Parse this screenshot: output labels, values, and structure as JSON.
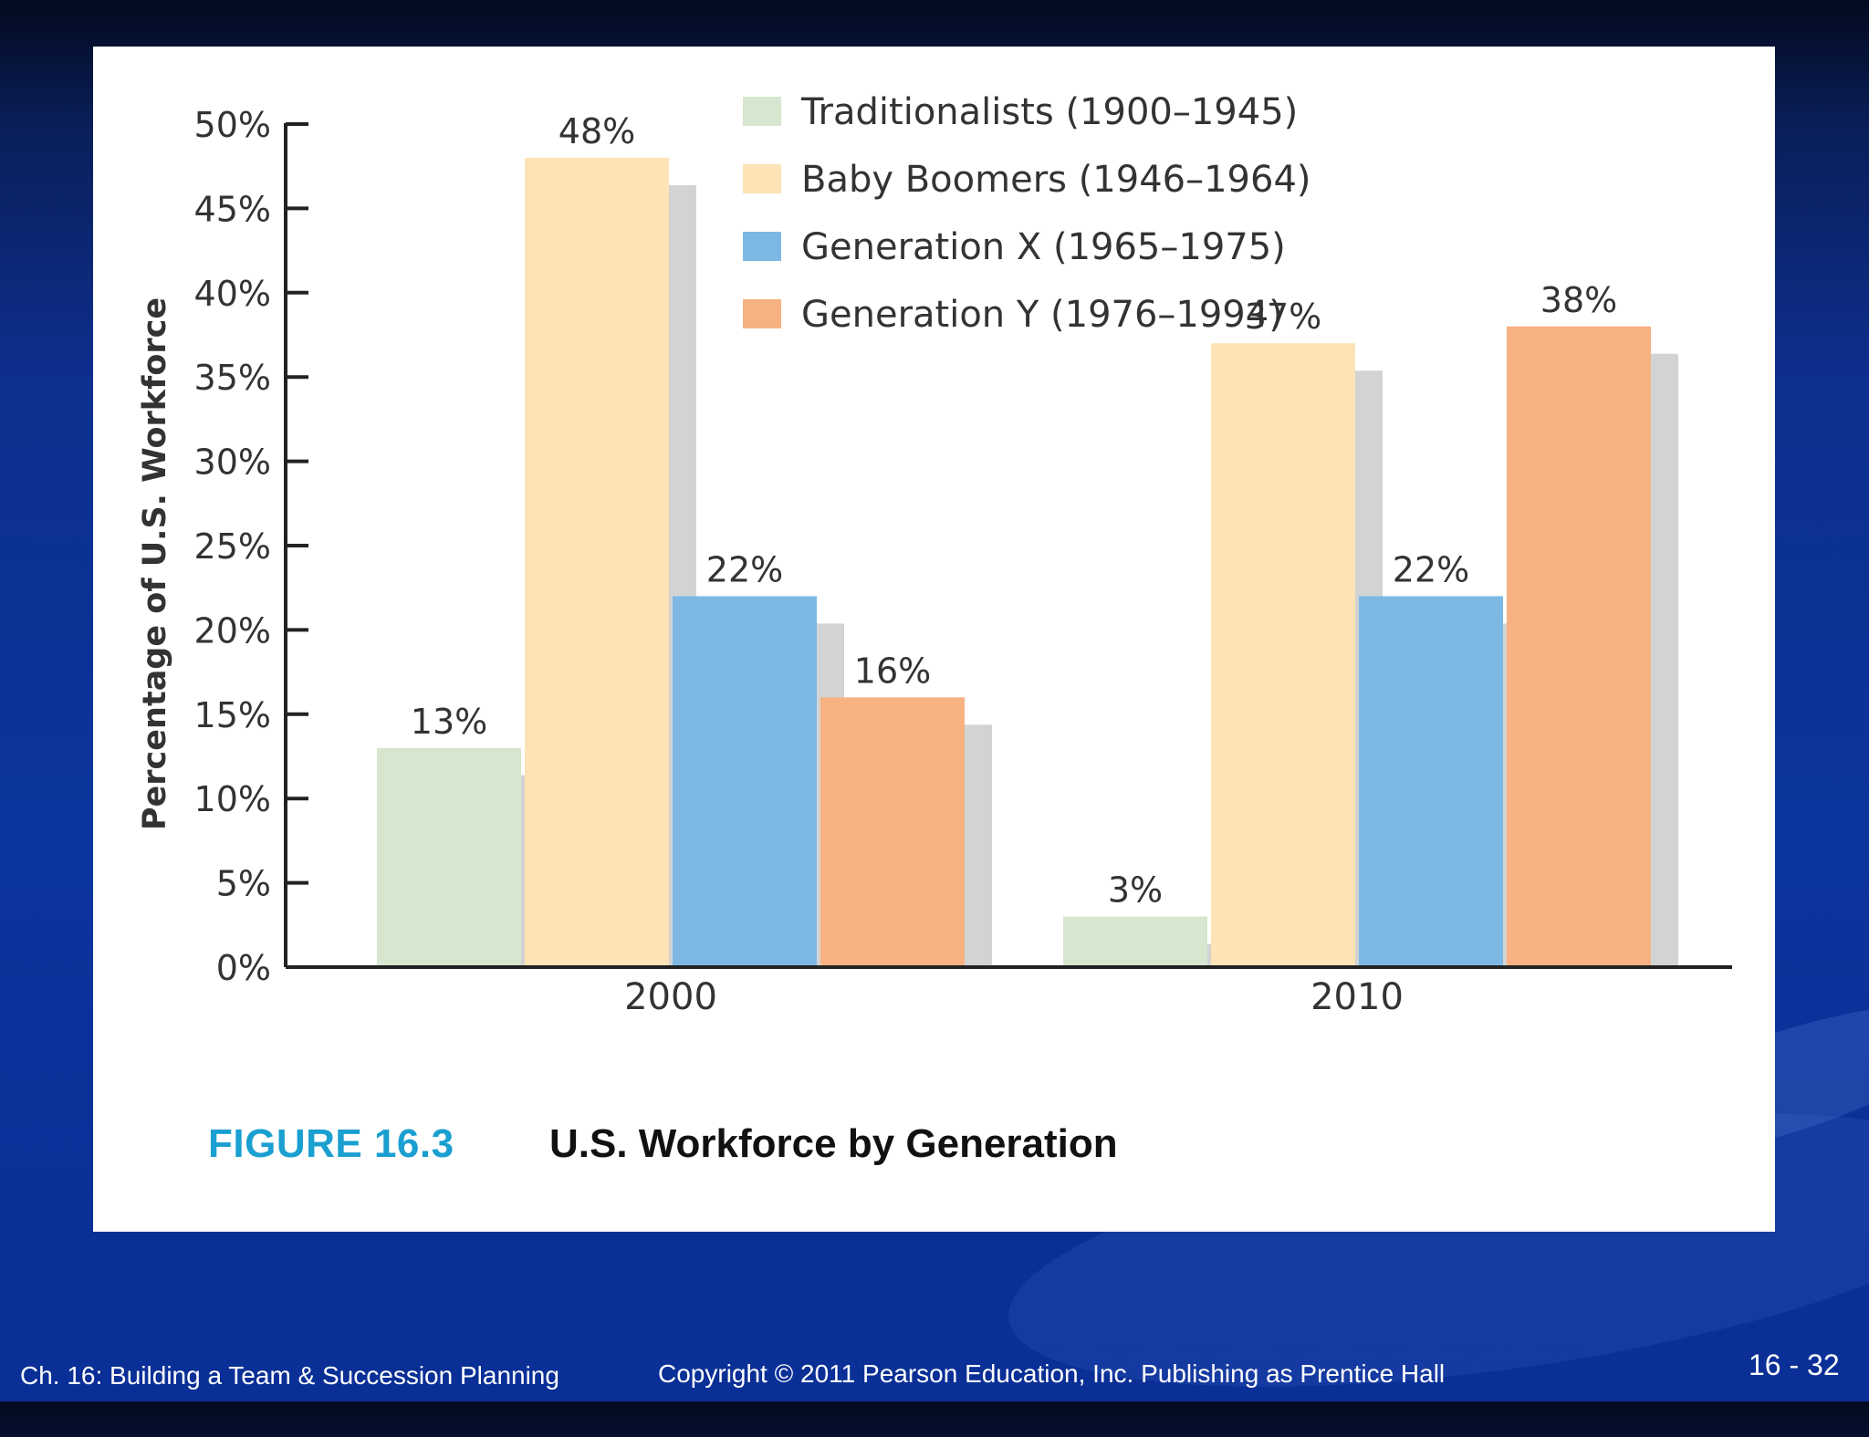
{
  "slide": {
    "figure_number": "FIGURE 16.3",
    "figure_title": "U.S. Workforce by Generation",
    "footer_left": "Ch. 16: Building a Team & Succession Planning",
    "footer_center": "Copyright © 2011 Pearson Education, Inc. Publishing as Prentice Hall",
    "page_number": "16 - 32"
  },
  "colors": {
    "traditionalists": "#d6e6cf",
    "baby_boomers": "#fde3b5",
    "generation_x": "#7db8e5",
    "generation_y": "#f8b281",
    "shadow": "#d2d3d4",
    "axis": "#222222",
    "text": "#333333"
  },
  "chart_data": {
    "type": "bar",
    "title": "",
    "xlabel": "",
    "ylabel": "Percentage of U.S. Workforce",
    "ylim": [
      0,
      50
    ],
    "yticks": [
      "0%",
      "5%",
      "10%",
      "15%",
      "20%",
      "25%",
      "30%",
      "35%",
      "40%",
      "45%",
      "50%"
    ],
    "categories": [
      "2000",
      "2010"
    ],
    "legend_position": "top-center",
    "series": [
      {
        "name": "Traditionalists (1900–1945)",
        "values": [
          13,
          3
        ],
        "labels": [
          "13%",
          "3%"
        ]
      },
      {
        "name": "Baby Boomers (1946–1964)",
        "values": [
          48,
          37
        ],
        "labels": [
          "48%",
          "37%"
        ]
      },
      {
        "name": "Generation X (1965–1975)",
        "values": [
          22,
          22
        ],
        "labels": [
          "22%",
          "22%"
        ]
      },
      {
        "name": "Generation Y (1976–1994)",
        "values": [
          16,
          38
        ],
        "labels": [
          "16%",
          "38%"
        ]
      }
    ]
  }
}
